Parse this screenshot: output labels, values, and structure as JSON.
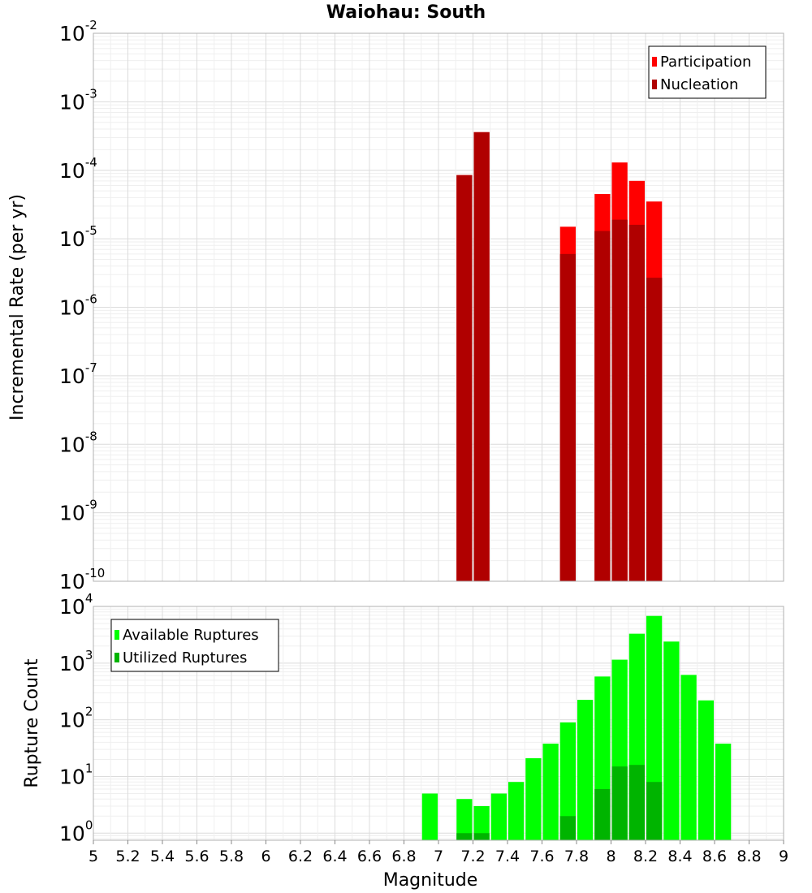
{
  "chart_data": [
    {
      "type": "bar",
      "title": "Waiohau: South",
      "xlabel": "",
      "ylabel": "Incremental Rate (per yr)",
      "xlim": [
        5,
        9
      ],
      "ylim": [
        1e-10,
        0.01
      ],
      "yscale": "log",
      "bin_width": 0.1,
      "grid": true,
      "legend_position": "top-right",
      "y_ticks": [
        {
          "base": "10",
          "exp": "-10",
          "value": 1e-10
        },
        {
          "base": "10",
          "exp": "-9",
          "value": 1e-09
        },
        {
          "base": "10",
          "exp": "-8",
          "value": 1e-08
        },
        {
          "base": "10",
          "exp": "-7",
          "value": 1e-07
        },
        {
          "base": "10",
          "exp": "-6",
          "value": 1e-06
        },
        {
          "base": "10",
          "exp": "-5",
          "value": 1e-05
        },
        {
          "base": "10",
          "exp": "-4",
          "value": 0.0001
        },
        {
          "base": "10",
          "exp": "-3",
          "value": 0.001
        },
        {
          "base": "10",
          "exp": "-2",
          "value": 0.01
        }
      ],
      "series": [
        {
          "name": "Participation",
          "color": "#ff0000",
          "points": [
            {
              "x": 7.15,
              "y": 8.5e-05
            },
            {
              "x": 7.25,
              "y": 0.00036
            },
            {
              "x": 7.75,
              "y": 1.5e-05
            },
            {
              "x": 7.95,
              "y": 4.5e-05
            },
            {
              "x": 8.05,
              "y": 0.00013
            },
            {
              "x": 8.15,
              "y": 7e-05
            },
            {
              "x": 8.25,
              "y": 3.5e-05
            }
          ]
        },
        {
          "name": "Nucleation",
          "color": "#b00000",
          "points": [
            {
              "x": 7.15,
              "y": 8.5e-05
            },
            {
              "x": 7.25,
              "y": 0.00036
            },
            {
              "x": 7.75,
              "y": 6e-06
            },
            {
              "x": 7.95,
              "y": 1.3e-05
            },
            {
              "x": 8.05,
              "y": 1.9e-05
            },
            {
              "x": 8.15,
              "y": 1.6e-05
            },
            {
              "x": 8.25,
              "y": 2.7e-06
            }
          ]
        }
      ]
    },
    {
      "type": "bar",
      "title": "",
      "xlabel": "Magnitude",
      "ylabel": "Rupture Count",
      "xlim": [
        5,
        9
      ],
      "ylim": [
        0.75,
        10000
      ],
      "yscale": "log",
      "bin_width": 0.1,
      "grid": true,
      "legend_position": "top-left",
      "x_ticks": [
        "5",
        "5.2",
        "5.4",
        "5.6",
        "5.8",
        "6",
        "6.2",
        "6.4",
        "6.6",
        "6.8",
        "7",
        "7.2",
        "7.4",
        "7.6",
        "7.8",
        "8",
        "8.2",
        "8.4",
        "8.6",
        "8.8",
        "9"
      ],
      "y_ticks": [
        {
          "base": "10",
          "exp": "0",
          "value": 1
        },
        {
          "base": "10",
          "exp": "1",
          "value": 10
        },
        {
          "base": "10",
          "exp": "2",
          "value": 100
        },
        {
          "base": "10",
          "exp": "3",
          "value": 1000
        },
        {
          "base": "10",
          "exp": "4",
          "value": 10000
        }
      ],
      "series": [
        {
          "name": "Available Ruptures",
          "color": "#00ff00",
          "points": [
            {
              "x": 6.95,
              "y": 5
            },
            {
              "x": 7.15,
              "y": 4
            },
            {
              "x": 7.25,
              "y": 3
            },
            {
              "x": 7.35,
              "y": 5
            },
            {
              "x": 7.45,
              "y": 8
            },
            {
              "x": 7.55,
              "y": 21
            },
            {
              "x": 7.65,
              "y": 38
            },
            {
              "x": 7.75,
              "y": 90
            },
            {
              "x": 7.85,
              "y": 225
            },
            {
              "x": 7.95,
              "y": 580
            },
            {
              "x": 8.05,
              "y": 1150
            },
            {
              "x": 8.15,
              "y": 3300
            },
            {
              "x": 8.25,
              "y": 6800
            },
            {
              "x": 8.35,
              "y": 2400
            },
            {
              "x": 8.45,
              "y": 620
            },
            {
              "x": 8.55,
              "y": 220
            },
            {
              "x": 8.65,
              "y": 38
            }
          ]
        },
        {
          "name": "Utilized Ruptures",
          "color": "#00b400",
          "points": [
            {
              "x": 7.15,
              "y": 1
            },
            {
              "x": 7.25,
              "y": 1
            },
            {
              "x": 7.75,
              "y": 2
            },
            {
              "x": 7.95,
              "y": 6
            },
            {
              "x": 8.05,
              "y": 15
            },
            {
              "x": 8.15,
              "y": 16
            },
            {
              "x": 8.25,
              "y": 8
            }
          ]
        }
      ]
    }
  ]
}
